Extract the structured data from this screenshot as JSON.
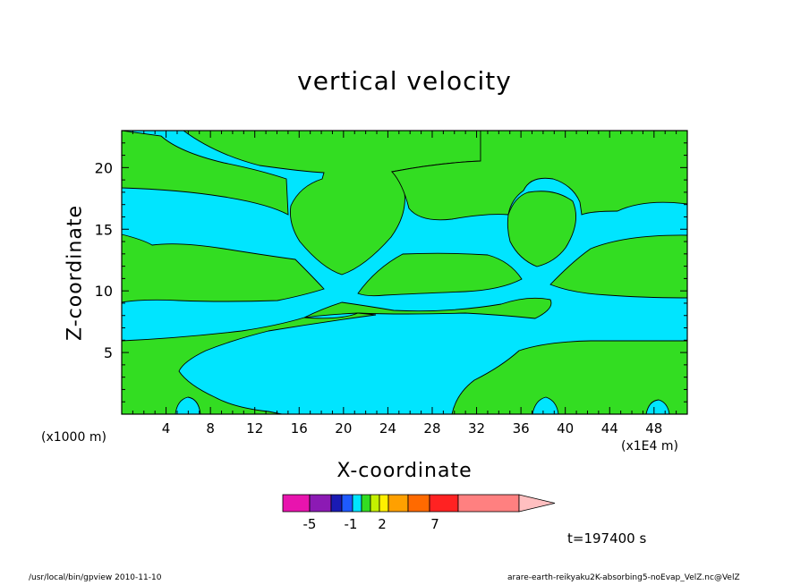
{
  "chart_data": {
    "type": "contour",
    "title": "vertical velocity",
    "xlabel": "X-coordinate",
    "ylabel": "Z-coordinate",
    "x_unit_label": "(x1000 m)",
    "x_multiplier_label": "(x1E4 m)",
    "xlim": [
      0,
      51
    ],
    "ylim": [
      0,
      23
    ],
    "x_ticks": [
      "4",
      "8",
      "12",
      "16",
      "20",
      "24",
      "28",
      "32",
      "36",
      "40",
      "44",
      "48"
    ],
    "y_ticks": [
      "5",
      "10",
      "15",
      "20"
    ],
    "time_label": "t=197400 s",
    "colorbar": {
      "colors": [
        "#e814ae",
        "#8c1ab4",
        "#1a1ab4",
        "#1e5aff",
        "#00e5ff",
        "#33dd22",
        "#c4f000",
        "#ffef00",
        "#ffa000",
        "#ff6a00",
        "#ff2222",
        "#ff8080",
        "#ffbfc0"
      ],
      "labels": [
        "-5",
        "-1",
        "2",
        "7"
      ]
    },
    "field_colors": {
      "positive": "#33dd22",
      "negative": "#00e5ff"
    }
  },
  "footer": {
    "left": "/usr/local/bin/gpview  2010-11-10",
    "right": "arare-earth-reikyaku2K-absorbing5-noEvap_VelZ.nc@VelZ"
  }
}
